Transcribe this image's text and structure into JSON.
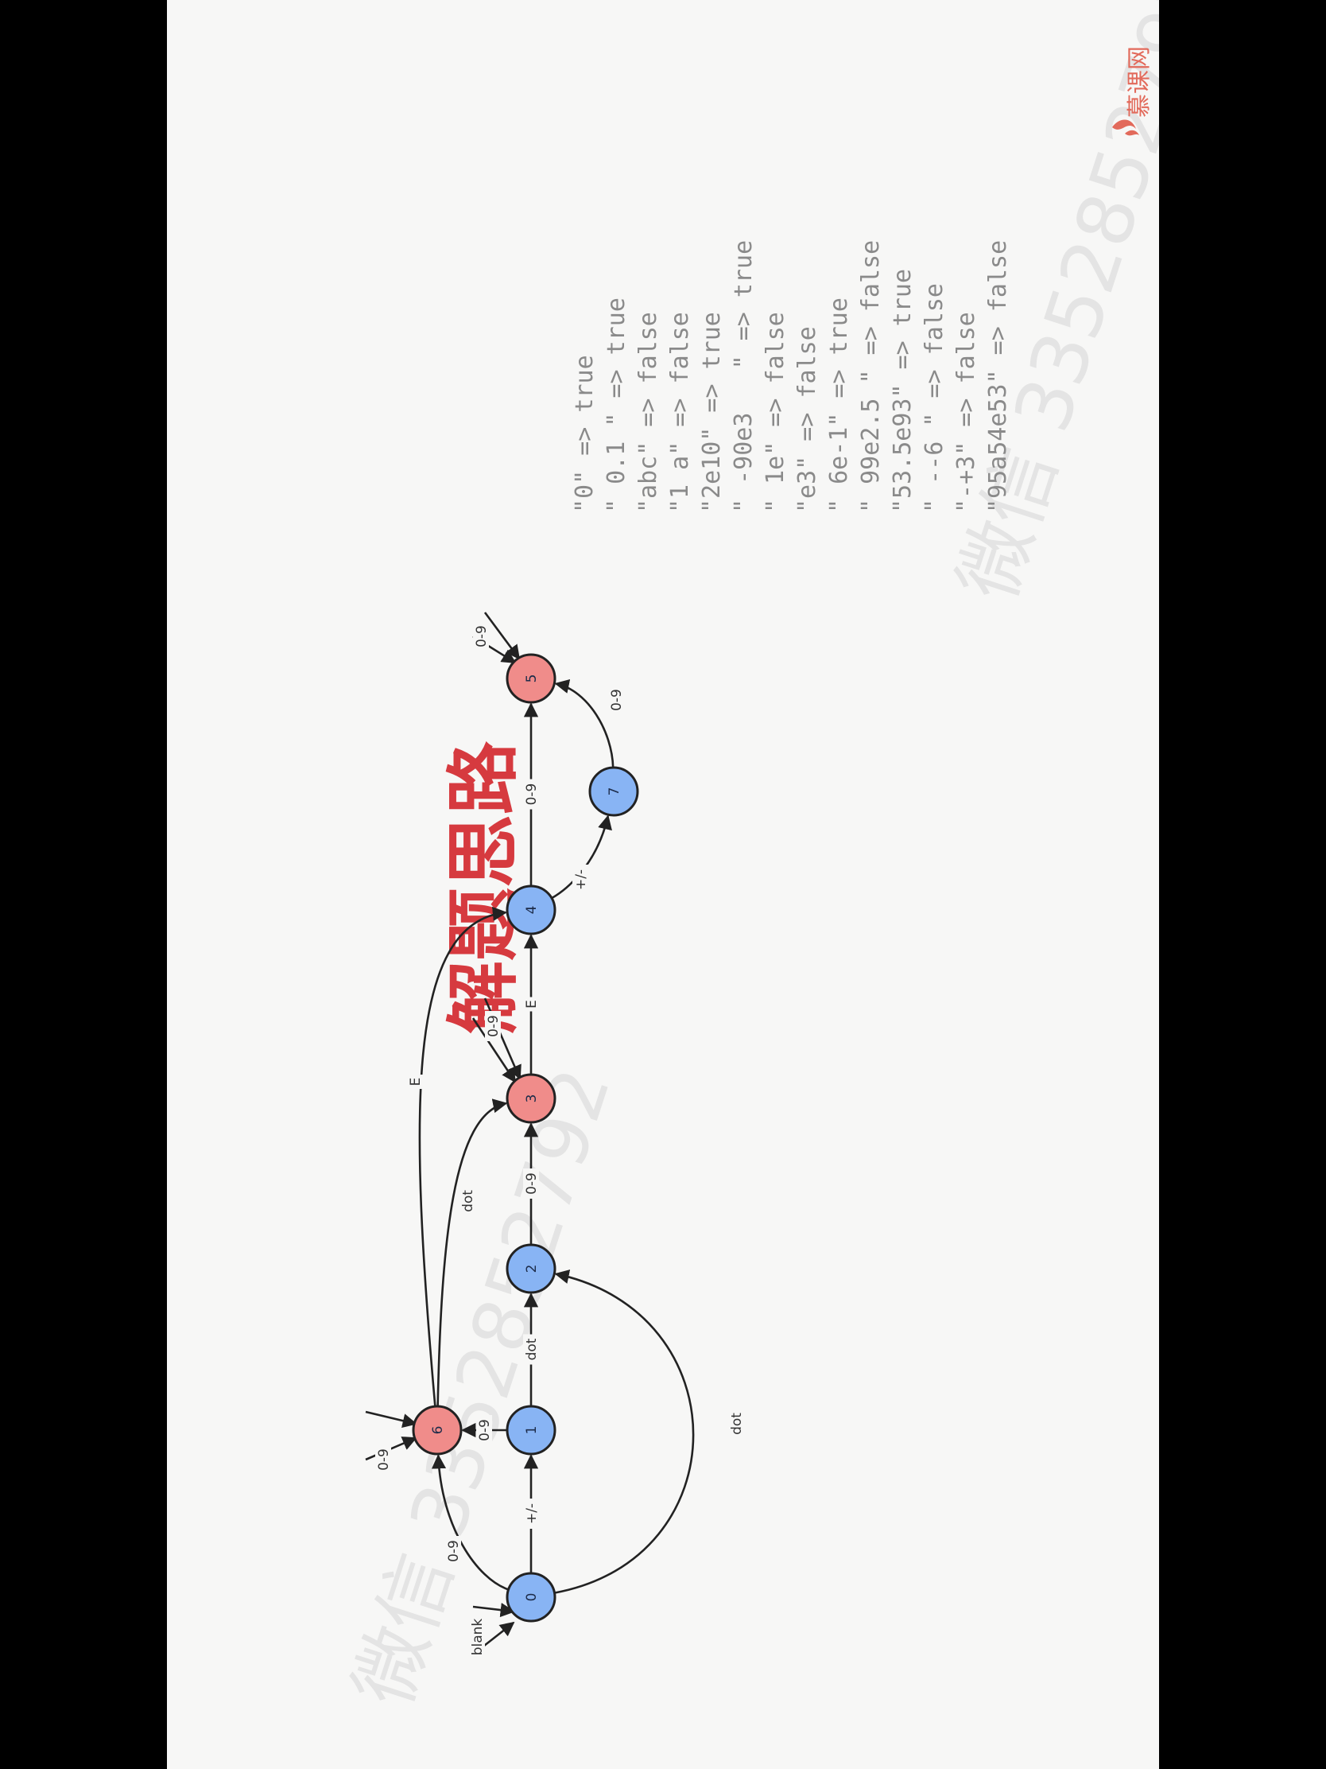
{
  "title": "解题思路",
  "logo": {
    "text": "慕课网",
    "icon": "flame-icon",
    "color": "#e26a5b"
  },
  "watermark": "微信 3352852792",
  "colors": {
    "blue_node": "#88b4f4",
    "red_node": "#f08c8a",
    "title": "#d63a3f"
  },
  "automaton": {
    "nodes": [
      {
        "id": "0",
        "color": "blue"
      },
      {
        "id": "1",
        "color": "blue"
      },
      {
        "id": "2",
        "color": "blue"
      },
      {
        "id": "3",
        "color": "red"
      },
      {
        "id": "4",
        "color": "blue"
      },
      {
        "id": "5",
        "color": "red"
      },
      {
        "id": "6",
        "color": "red"
      },
      {
        "id": "7",
        "color": "blue"
      }
    ],
    "edges": [
      {
        "from": "0",
        "to": "0",
        "label": "blank"
      },
      {
        "from": "0",
        "to": "1",
        "label": "+/-"
      },
      {
        "from": "0",
        "to": "6",
        "label": "0-9"
      },
      {
        "from": "0",
        "to": "2",
        "label": "dot"
      },
      {
        "from": "1",
        "to": "6",
        "label": "0-9"
      },
      {
        "from": "1",
        "to": "2",
        "label": "dot"
      },
      {
        "from": "6",
        "to": "6",
        "label": "0-9"
      },
      {
        "from": "6",
        "to": "3",
        "label": "dot"
      },
      {
        "from": "6",
        "to": "4",
        "label": "E"
      },
      {
        "from": "2",
        "to": "3",
        "label": "0-9"
      },
      {
        "from": "3",
        "to": "3",
        "label": "0-9"
      },
      {
        "from": "3",
        "to": "4",
        "label": "E"
      },
      {
        "from": "4",
        "to": "5",
        "label": "0-9"
      },
      {
        "from": "4",
        "to": "7",
        "label": "+/-"
      },
      {
        "from": "7",
        "to": "5",
        "label": "0-9"
      },
      {
        "from": "5",
        "to": "5",
        "label": "0-9"
      }
    ]
  },
  "examples": [
    "\"0\" => true",
    "\" 0.1 \" => true",
    "\"abc\" => false",
    "\"1 a\" => false",
    "\"2e10\" => true",
    "\" -90e3   \" => true",
    "\" 1e\" => false",
    "\"e3\" => false",
    "\" 6e-1\" => true",
    "\" 99e2.5 \" => false",
    "\"53.5e93\" => true",
    "\" --6 \" => false",
    "\"-+3\" => false",
    "\"95a54e53\" => false"
  ]
}
